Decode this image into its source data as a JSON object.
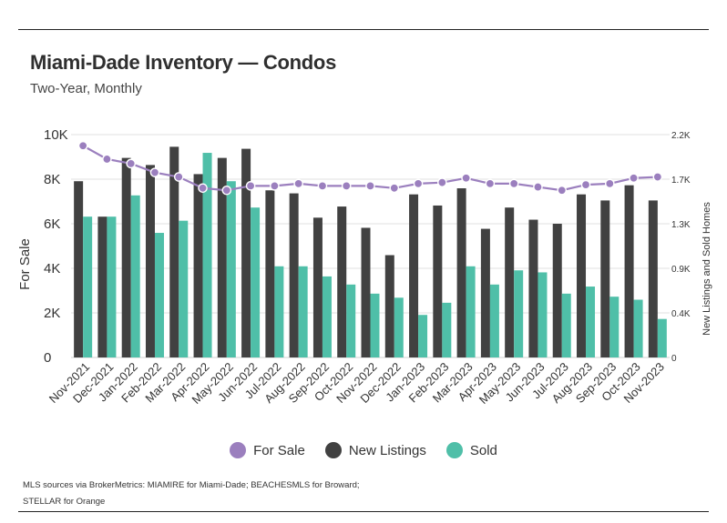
{
  "title": "Miami-Dade Inventory — Condos",
  "subtitle": "Two-Year, Monthly",
  "source": {
    "line1": "MLS sources via BrokerMetrics: MIAMIRE for Miami-Dade; BEACHESMLS for Broward;",
    "line2": "STELLAR for Orange"
  },
  "chart_data": {
    "type": "bar",
    "categories": [
      "Nov-2021",
      "Dec-2021",
      "Jan-2022",
      "Feb-2022",
      "Mar-2022",
      "Apr-2022",
      "May-2022",
      "Jun-2022",
      "Jul-2022",
      "Aug-2022",
      "Sep-2022",
      "Oct-2022",
      "Nov-2022",
      "Dec-2022",
      "Jan-2023",
      "Feb-2023",
      "Mar-2023",
      "Apr-2023",
      "May-2023",
      "Jun-2023",
      "Jul-2023",
      "Aug-2023",
      "Sep-2023",
      "Oct-2023",
      "Nov-2023"
    ],
    "ylabel_left": "For Sale",
    "ylabel_right": "New Listings and Sold Homes",
    "left_ticks": [
      "0",
      "2K",
      "4K",
      "6K",
      "8K",
      "10K"
    ],
    "right_ticks": [
      "0",
      "0.4K",
      "0.9K",
      "1.3K",
      "1.7K",
      "2.2K"
    ],
    "left_ylim": [
      0,
      10000
    ],
    "right_ylim": [
      0,
      2200
    ],
    "grid": "horizontal",
    "legend_position": "bottom",
    "series": [
      {
        "name": "For Sale",
        "kind": "line",
        "axis": "left",
        "color": "#9b7fbe",
        "values": [
          9500,
          8900,
          8700,
          8300,
          8100,
          7600,
          7500,
          7700,
          7700,
          7800,
          7700,
          7700,
          7700,
          7600,
          7800,
          7850,
          8050,
          7800,
          7800,
          7650,
          7500,
          7750,
          7800,
          8050,
          8100
        ]
      },
      {
        "name": "New Listings",
        "kind": "bar",
        "axis": "right",
        "color": "#414141",
        "values": [
          1740,
          1390,
          1970,
          1900,
          2080,
          1810,
          1970,
          2060,
          1650,
          1620,
          1380,
          1490,
          1280,
          1010,
          1610,
          1500,
          1670,
          1270,
          1480,
          1360,
          1320,
          1610,
          1550,
          1700,
          1550
        ]
      },
      {
        "name": "Sold",
        "kind": "bar",
        "axis": "right",
        "color": "#4fbfa8",
        "values": [
          1390,
          1390,
          1600,
          1230,
          1350,
          2020,
          1740,
          1480,
          900,
          900,
          800,
          720,
          630,
          590,
          420,
          540,
          900,
          720,
          860,
          840,
          630,
          700,
          600,
          570,
          380
        ]
      }
    ]
  },
  "legend": {
    "items": [
      {
        "label": "For Sale",
        "color": "#9b7fbe"
      },
      {
        "label": "New Listings",
        "color": "#414141"
      },
      {
        "label": "Sold",
        "color": "#4fbfa8"
      }
    ]
  }
}
